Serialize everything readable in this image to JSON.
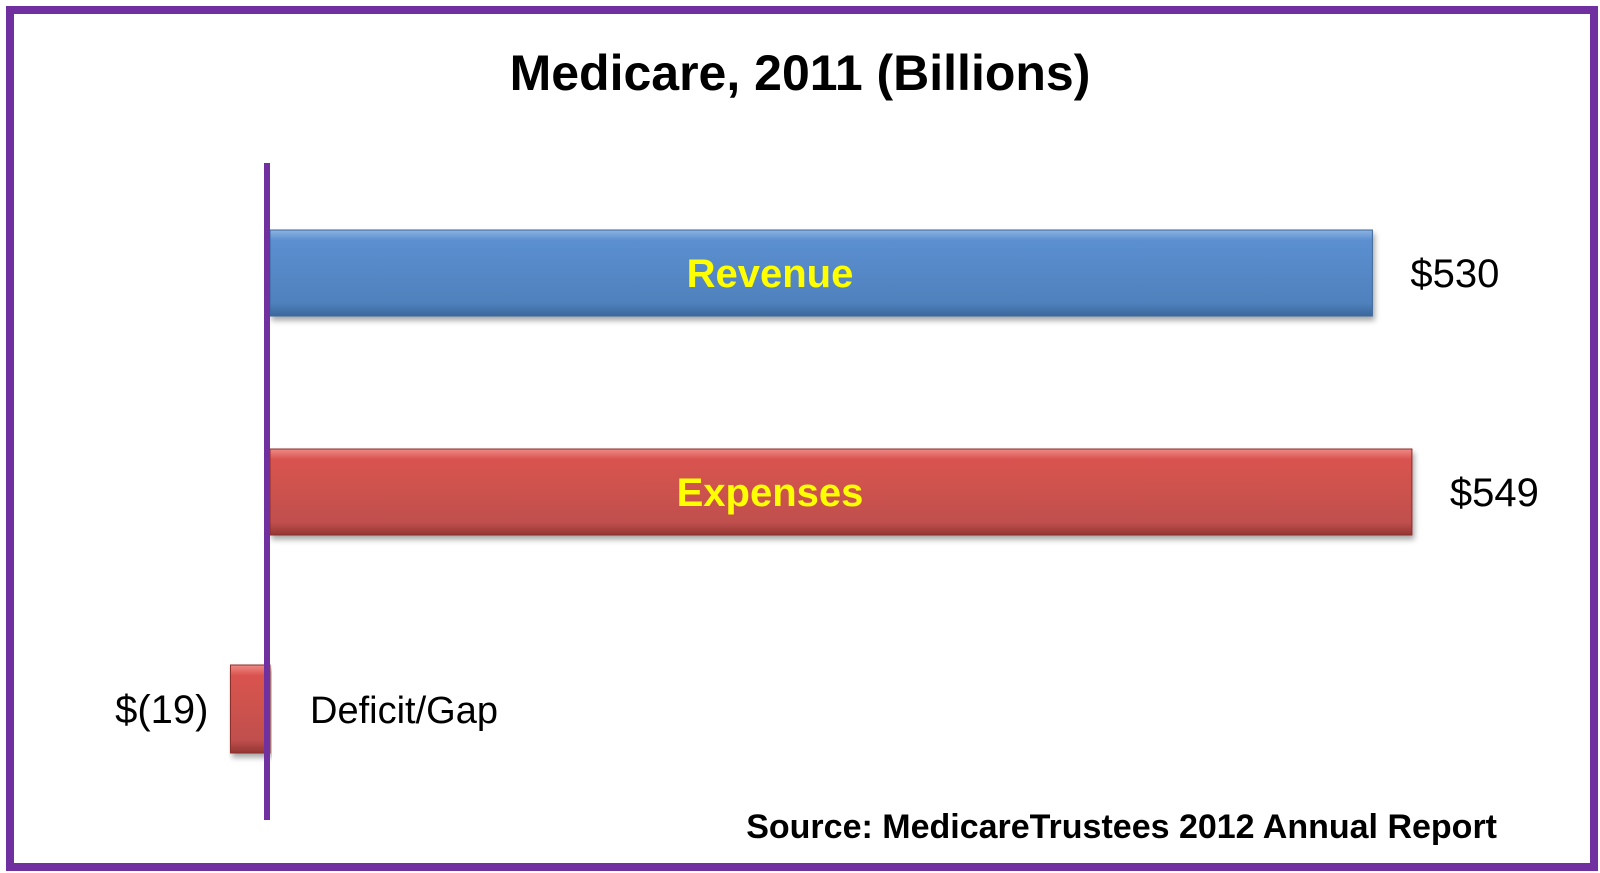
{
  "chart_data": {
    "type": "bar",
    "orientation": "horizontal",
    "title": "Medicare, 2011 (Billions)",
    "source": "Source: MedicareTrustees 2012 Annual Report",
    "categories": [
      "Revenue",
      "Expenses",
      "Deficit/Gap"
    ],
    "values": [
      530,
      549,
      -19
    ],
    "value_labels": [
      "$530",
      "$549",
      "$(19)"
    ],
    "colors": [
      "#4f81bd",
      "#c0504d",
      "#c0504d"
    ],
    "category_label_color": "#ffff00",
    "axis_color": "#7030a0",
    "frame_color": "#7030a0",
    "grid": false,
    "legend": "none"
  }
}
